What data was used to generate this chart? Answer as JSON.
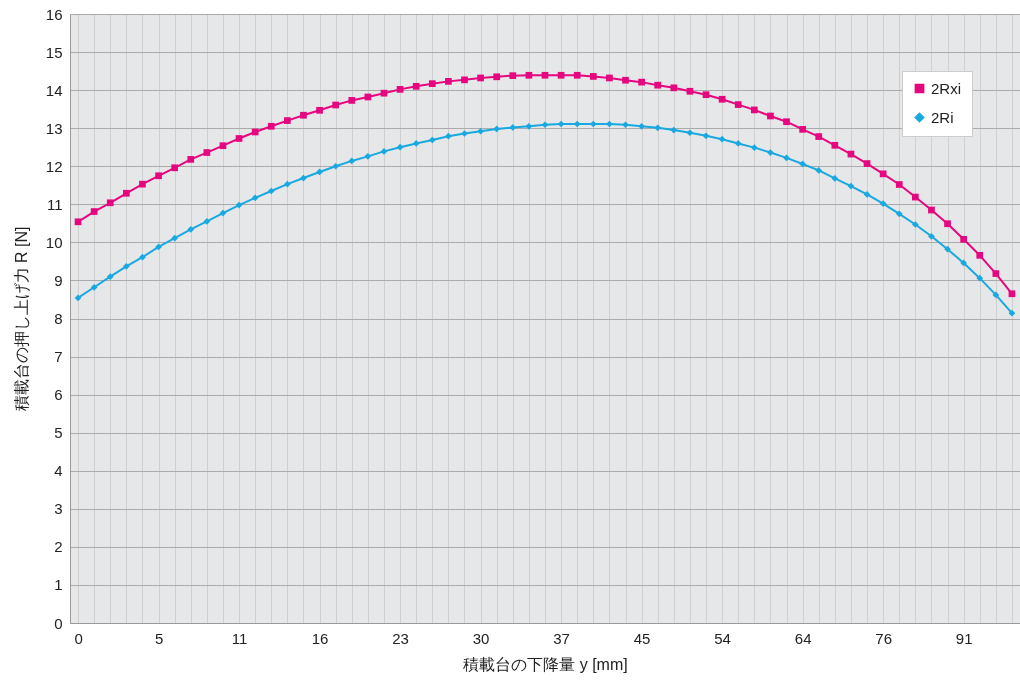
{
  "chart_data": {
    "type": "line",
    "xlabel": "積載台の下降量 y [mm]",
    "ylabel": "積載台の押し上げ力 R [N]",
    "categories": [
      "0",
      null,
      null,
      null,
      null,
      "5",
      null,
      null,
      null,
      null,
      "11",
      null,
      null,
      null,
      null,
      "16",
      null,
      null,
      null,
      null,
      "23",
      null,
      null,
      null,
      null,
      "30",
      null,
      null,
      null,
      null,
      "37",
      null,
      null,
      null,
      null,
      "45",
      null,
      null,
      null,
      null,
      "54",
      null,
      null,
      null,
      null,
      "64",
      null,
      null,
      null,
      null,
      "76",
      null,
      null,
      null,
      null,
      "91",
      null,
      null,
      null
    ],
    "series": [
      {
        "name": "2Rxi",
        "color": "#e5077f",
        "marker": "square",
        "values": [
          10.54,
          10.81,
          11.04,
          11.29,
          11.53,
          11.75,
          11.96,
          12.18,
          12.36,
          12.54,
          12.73,
          12.9,
          13.05,
          13.2,
          13.34,
          13.47,
          13.61,
          13.73,
          13.82,
          13.92,
          14.02,
          14.1,
          14.17,
          14.23,
          14.27,
          14.32,
          14.35,
          14.38,
          14.39,
          14.39,
          14.39,
          14.39,
          14.36,
          14.32,
          14.26,
          14.21,
          14.13,
          14.06,
          13.97,
          13.88,
          13.76,
          13.62,
          13.48,
          13.32,
          13.17,
          12.97,
          12.78,
          12.55,
          12.32,
          12.07,
          11.8,
          11.52,
          11.19,
          10.85,
          10.49,
          10.08,
          9.66,
          9.18,
          8.65
        ]
      },
      {
        "name": "2Ri",
        "color": "#1aa8e0",
        "marker": "diamond",
        "values": [
          8.54,
          8.82,
          9.1,
          9.37,
          9.61,
          9.88,
          10.11,
          10.34,
          10.55,
          10.77,
          10.98,
          11.17,
          11.35,
          11.53,
          11.69,
          11.85,
          12.0,
          12.14,
          12.26,
          12.39,
          12.5,
          12.6,
          12.69,
          12.79,
          12.86,
          12.92,
          12.98,
          13.02,
          13.05,
          13.09,
          13.11,
          13.11,
          13.11,
          13.11,
          13.09,
          13.05,
          13.01,
          12.95,
          12.88,
          12.8,
          12.71,
          12.6,
          12.49,
          12.36,
          12.22,
          12.06,
          11.89,
          11.68,
          11.48,
          11.26,
          11.02,
          10.75,
          10.47,
          10.16,
          9.82,
          9.46,
          9.06,
          8.62,
          8.14
        ]
      }
    ],
    "ylim": [
      0,
      16
    ],
    "yticks": [
      0,
      1,
      2,
      3,
      4,
      5,
      6,
      7,
      8,
      9,
      10,
      11,
      12,
      13,
      14,
      15,
      16
    ],
    "grid": true,
    "legend": "top right",
    "line_style": "solid"
  }
}
